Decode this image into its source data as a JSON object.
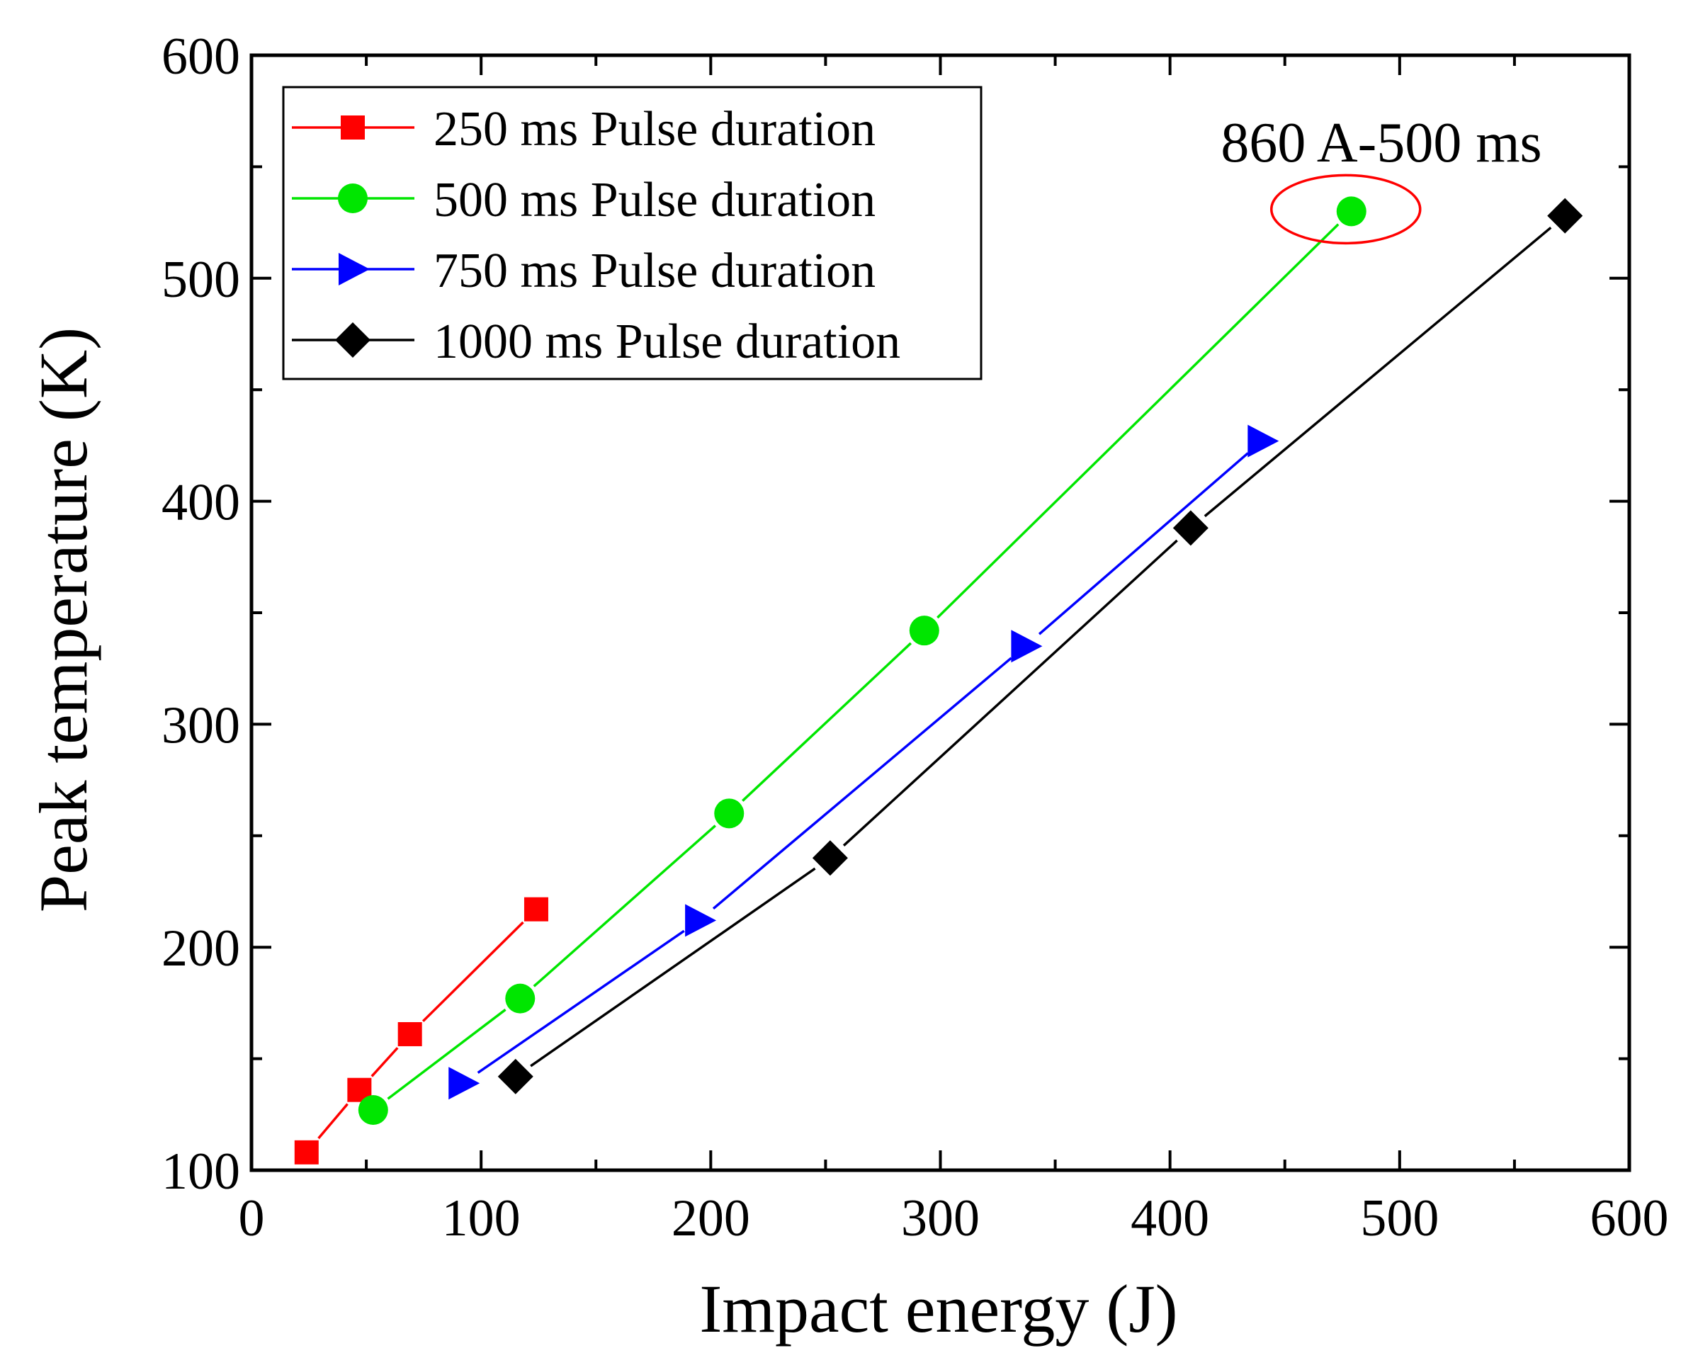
{
  "chart_data": {
    "type": "line",
    "title": "",
    "xlabel": "Impact energy (J)",
    "ylabel": "Peak temperature (K)",
    "xlim": [
      0,
      600
    ],
    "ylim": [
      100,
      600
    ],
    "xticks": [
      "0",
      "100",
      "200",
      "300",
      "400",
      "500",
      "600"
    ],
    "yticks": [
      "100",
      "200",
      "300",
      "400",
      "500",
      "600"
    ],
    "grid": false,
    "legend_position": "top-left",
    "series": [
      {
        "name": "250 ms Pulse duration",
        "color": "#ff0000",
        "marker": "square",
        "x": [
          24,
          47,
          69,
          124
        ],
        "y": [
          108,
          136,
          161,
          217
        ]
      },
      {
        "name": "500 ms Pulse duration",
        "color": "#00e600",
        "marker": "circle",
        "x": [
          53,
          117,
          208,
          293,
          479
        ],
        "y": [
          127,
          177,
          260,
          342,
          530
        ]
      },
      {
        "name": "750 ms Pulse duration",
        "color": "#0000ff",
        "marker": "triangle-right",
        "x": [
          92,
          195,
          337,
          440
        ],
        "y": [
          139,
          212,
          335,
          427
        ]
      },
      {
        "name": "1000 ms Pulse duration",
        "color": "#000000",
        "marker": "diamond",
        "x": [
          115,
          252,
          409,
          572
        ],
        "y": [
          142,
          240,
          388,
          528
        ]
      }
    ],
    "annotations": [
      {
        "text": "860 A-500 ms",
        "x": 479,
        "y": 530,
        "highlight": "ellipse",
        "color": "#ff0000"
      }
    ]
  }
}
